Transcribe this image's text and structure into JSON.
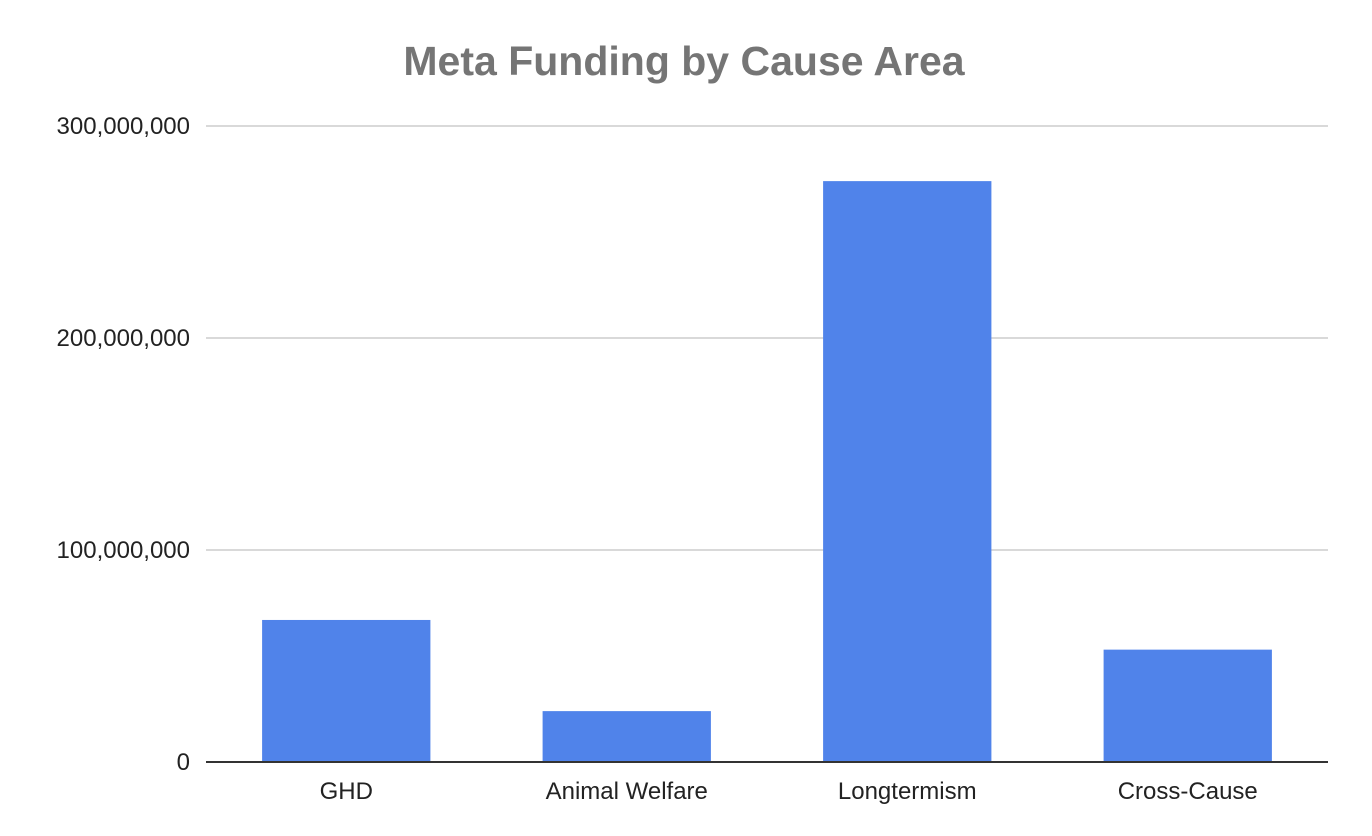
{
  "chart_data": {
    "type": "bar",
    "title": "Meta Funding by Cause Area",
    "xlabel": "",
    "ylabel": "",
    "categories": [
      "GHD",
      "Animal Welfare",
      "Longtermism",
      "Cross-Cause"
    ],
    "values": [
      67000000,
      24000000,
      274000000,
      53000000
    ],
    "ylim": [
      0,
      300000000
    ],
    "yticks": [
      0,
      100000000,
      200000000,
      300000000
    ],
    "ytick_labels": [
      "0",
      "100,000,000",
      "200,000,000",
      "300,000,000"
    ],
    "grid": true,
    "legend": "none",
    "bar_color": "#5083EA",
    "title_color": "#757575"
  }
}
